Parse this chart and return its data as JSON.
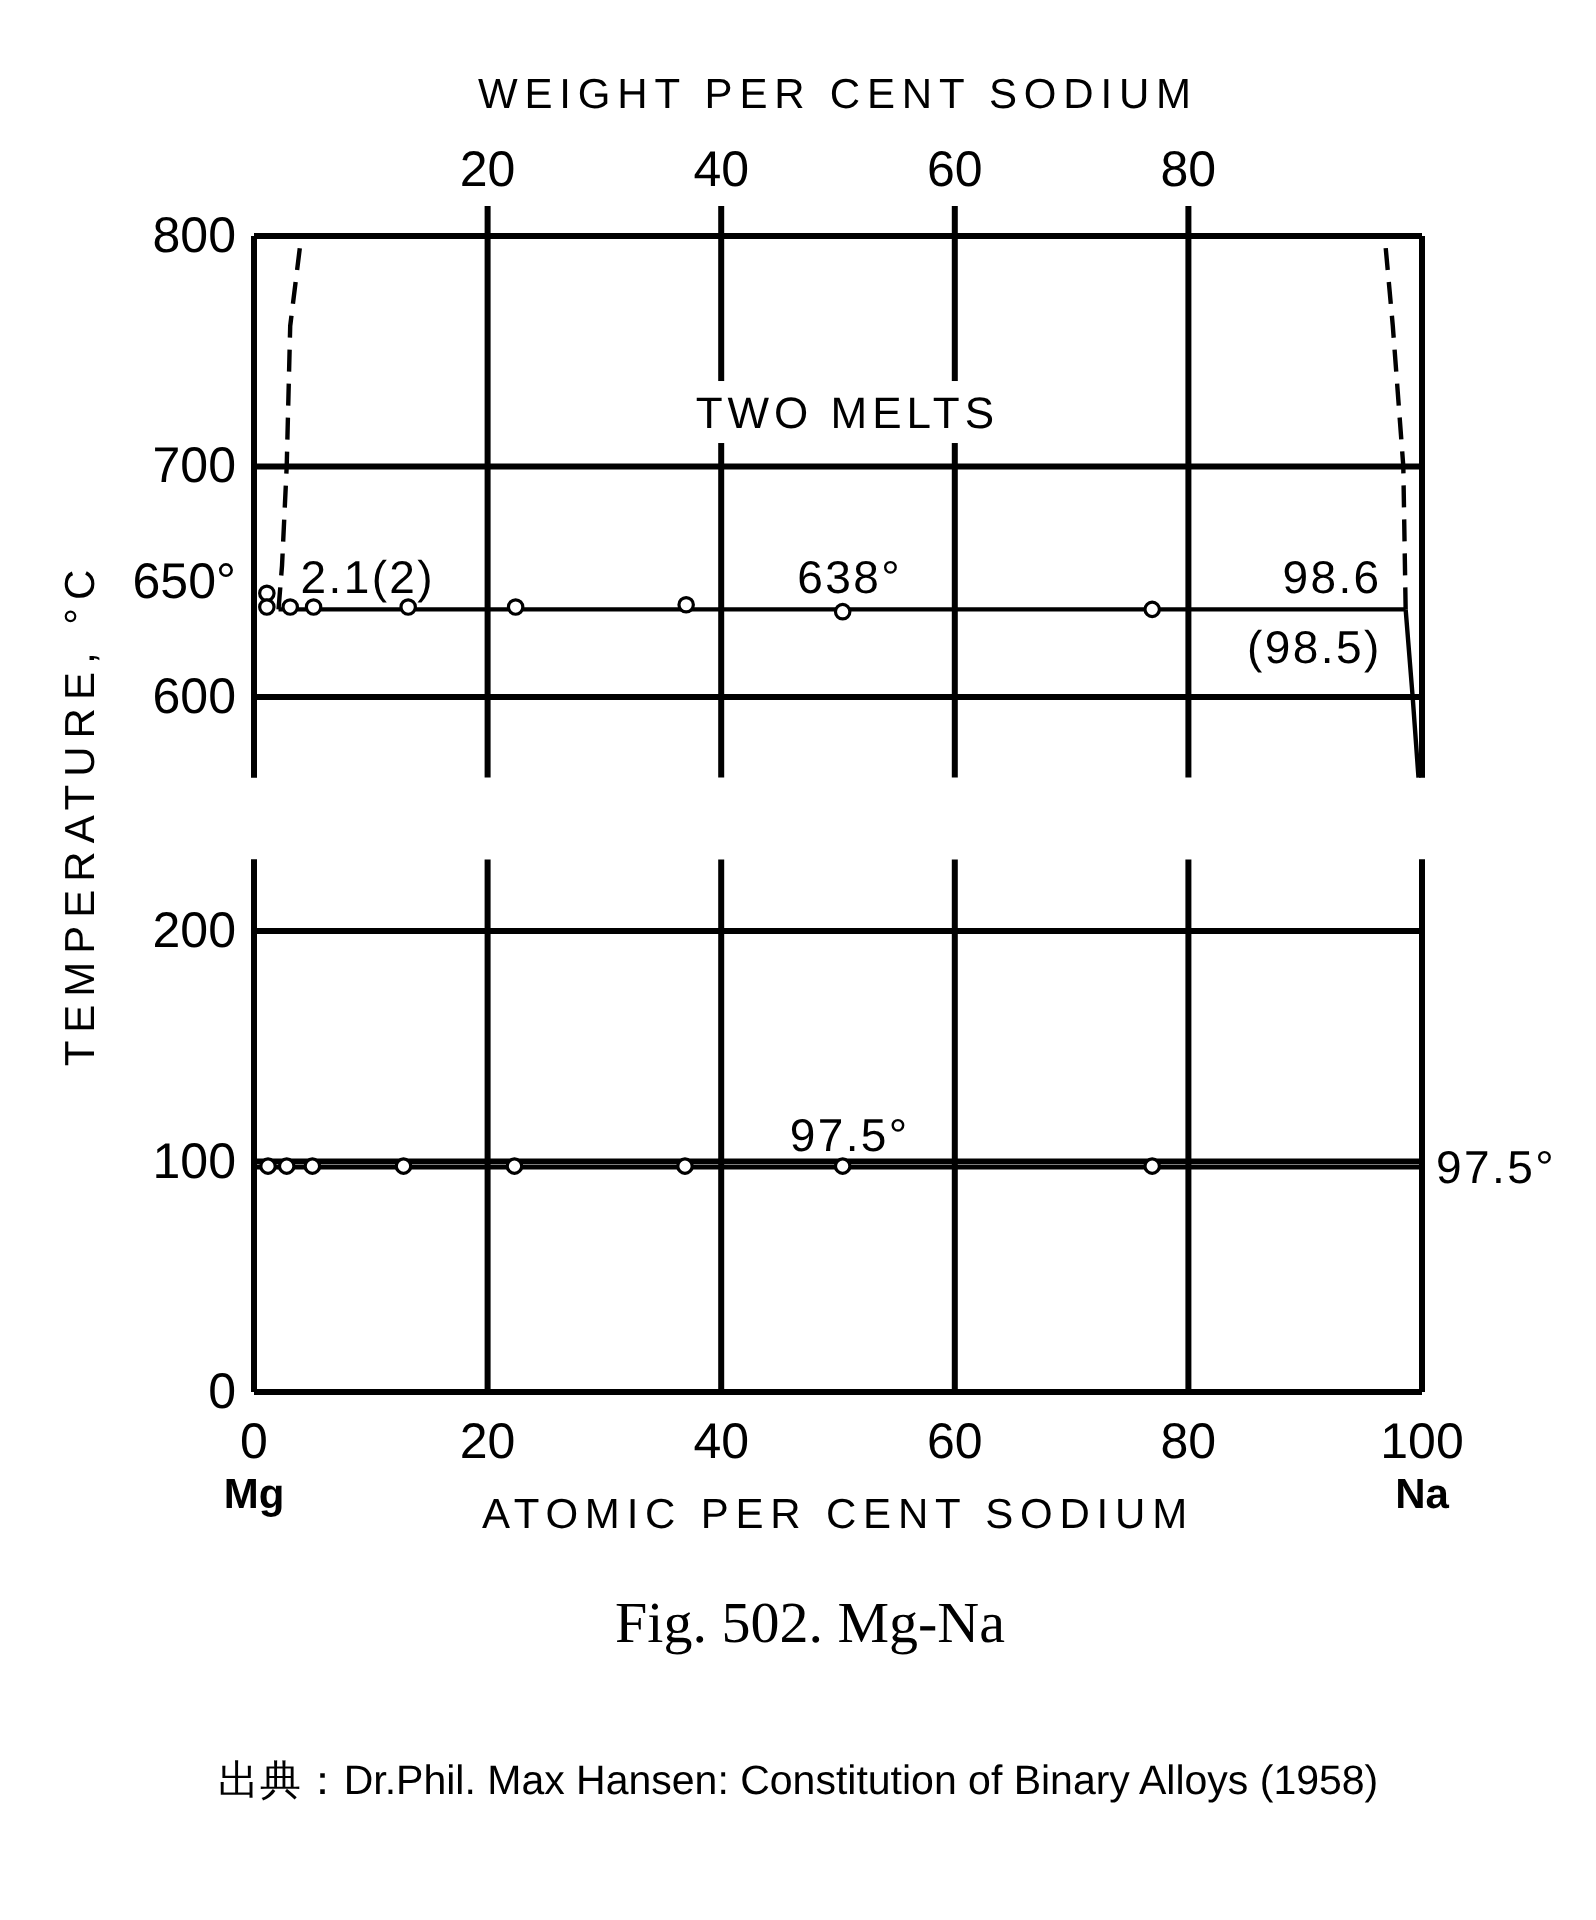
{
  "chart_data": [
    {
      "type": "line",
      "x2label": "WEIGHT PER CENT SODIUM",
      "ylabel": "TEMPERATURE, °C",
      "xlim": [
        0,
        100
      ],
      "xticks": [
        0,
        20,
        40,
        60,
        80,
        100
      ],
      "x2lim": [
        0,
        100
      ],
      "x2ticks": [
        20,
        40,
        60,
        80
      ],
      "ylim": [
        565,
        800
      ],
      "yticks": [
        600,
        {
          "value": 650,
          "label": "650°"
        },
        700,
        800
      ],
      "grid": true,
      "tick_labels": "y",
      "series": [
        {
          "color": "#000000",
          "x": [
            2.1,
            98.6
          ],
          "values": [
            638,
            638
          ]
        },
        {
          "color": "#000000",
          "line_style": "dashed",
          "x": [
            2.1,
            2.4,
            2.8,
            3.1,
            4.05
          ],
          "values": [
            638,
            657,
            700,
            761,
            800
          ]
        },
        {
          "color": "#000000",
          "line_style": "dashed",
          "x": [
            98.6,
            98.4,
            97.5,
            96.8
          ],
          "values": [
            638,
            700,
            761,
            800
          ]
        },
        {
          "color": "#000000",
          "x": [
            98.6,
            99.2,
            99.7
          ],
          "values": [
            638,
            600,
            565
          ]
        },
        {
          "type": "scatter",
          "color": "#000000",
          "marker": "circle",
          "x": [
            1.1,
            1.1,
            3.1,
            5.1,
            13.2,
            22.4,
            37,
            50.4,
            76.9
          ],
          "values": [
            645,
            639,
            639,
            639,
            639,
            639,
            640,
            637,
            638
          ]
        }
      ],
      "annotations": [
        "TWO MELTS",
        {
          "text": "2.1(2)",
          "x": 2.1,
          "y": 638
        },
        {
          "text": "638°",
          "x": 51,
          "y": 638
        },
        {
          "text": "98.6",
          "x": 98.6,
          "y": 638
        },
        {
          "text": "(98.5)",
          "x": 98.6,
          "y": 638
        }
      ]
    },
    {
      "type": "line",
      "xlabel": "ATOMIC PER CENT SODIUM",
      "xlim": [
        0,
        100
      ],
      "xticks": [
        0,
        20,
        40,
        60,
        80,
        100
      ],
      "ylim": [
        0,
        231
      ],
      "yticks": [
        0,
        100,
        200
      ],
      "grid": true,
      "series": [
        {
          "color": "#000000",
          "x": [
            0,
            100
          ],
          "values": [
            97.5,
            97.5
          ]
        },
        {
          "type": "scatter",
          "color": "#000000",
          "marker": "circle",
          "x": [
            1.2,
            2.8,
            5,
            12.8,
            22.3,
            36.9,
            50.4,
            76.9
          ],
          "values": [
            98,
            98,
            98,
            98,
            98,
            98,
            98,
            98
          ]
        }
      ],
      "annotations": [
        "Mg",
        "Na",
        {
          "text": "97.5°",
          "x": 51,
          "y": 97.5
        },
        {
          "text": "97.5°",
          "x": 100,
          "y": 97.5
        },
        "Fig. 502. Mg-Na",
        "出典：Dr.Phil. Max Hansen: Constitution of Binary Alloys (1958)"
      ]
    }
  ]
}
